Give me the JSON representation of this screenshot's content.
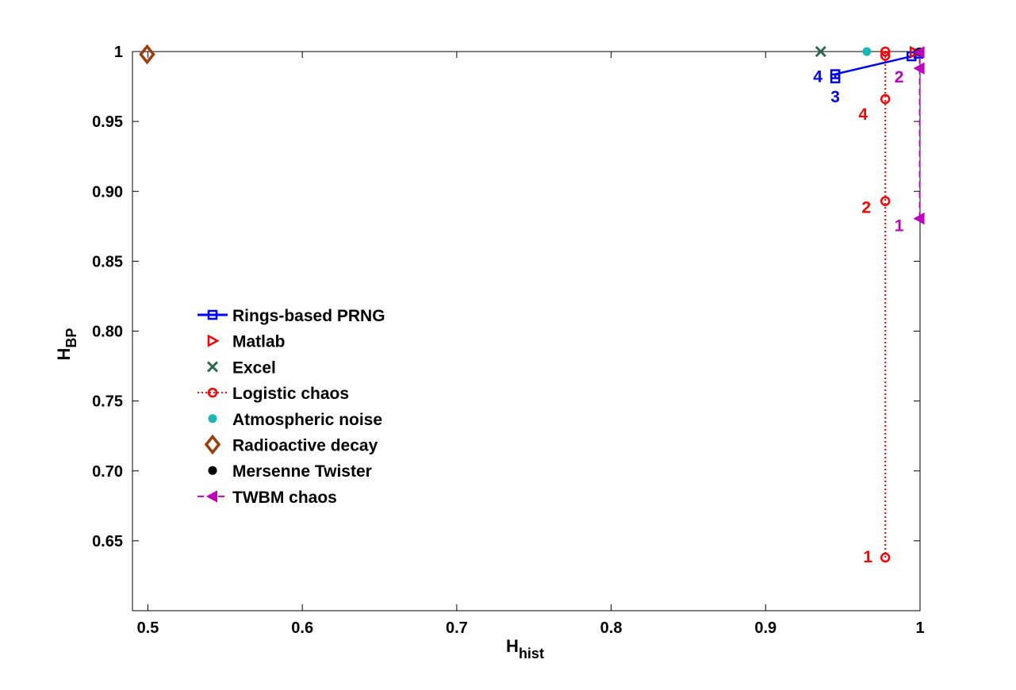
{
  "chart_data": {
    "type": "scatter",
    "xlabel": "H",
    "xlabel_sub": "hist",
    "ylabel": "H",
    "ylabel_sub": "BP",
    "xlim": [
      0.49,
      1.0
    ],
    "ylim": [
      0.6,
      1.0
    ],
    "x_ticks": [
      0.5,
      0.6,
      0.7,
      0.8,
      0.9,
      1.0
    ],
    "x_tick_labels": [
      "0.5",
      "0.6",
      "0.7",
      "0.8",
      "0.9",
      "1"
    ],
    "y_ticks": [
      0.65,
      0.7,
      0.75,
      0.8,
      0.85,
      0.9,
      0.95,
      1.0
    ],
    "y_tick_labels": [
      "0.65",
      "0.70",
      "0.75",
      "0.80",
      "0.85",
      "0.90",
      "0.95",
      "1"
    ],
    "grid": false,
    "legend_position": "center-left",
    "series": [
      {
        "name": "Rings-based PRNG",
        "color": "#0000ff",
        "marker": "square",
        "line": "solid",
        "points": [
          {
            "x": 0.9451,
            "y": 0.9808,
            "label": "3"
          },
          {
            "x": 0.9451,
            "y": 0.9838,
            "label": "4"
          },
          {
            "x": 0.9945,
            "y": 0.9966,
            "label": ""
          },
          {
            "x": 0.999,
            "y": 0.9985,
            "label": ""
          }
        ]
      },
      {
        "name": "Matlab",
        "color": "#ff0000",
        "marker": "triangle-right",
        "line": "none",
        "points": [
          {
            "x": 0.9965,
            "y": 0.9995,
            "label": ""
          }
        ]
      },
      {
        "name": "Excel",
        "color": "#2e6b4f",
        "marker": "x",
        "line": "none",
        "points": [
          {
            "x": 0.9357,
            "y": 1.0,
            "label": ""
          }
        ]
      },
      {
        "name": "Logistic chaos",
        "color": "#ff0000",
        "marker": "circle",
        "line": "dotted",
        "points": [
          {
            "x": 0.9775,
            "y": 0.638,
            "label": "1"
          },
          {
            "x": 0.9775,
            "y": 0.893,
            "label": "2"
          },
          {
            "x": 0.9775,
            "y": 0.966,
            "label": "4"
          },
          {
            "x": 0.9775,
            "y": 0.997,
            "label": ""
          },
          {
            "x": 0.9775,
            "y": 1.0,
            "label": ""
          }
        ]
      },
      {
        "name": "Atmospheric noise",
        "color": "#18b8b8",
        "marker": "dot",
        "line": "none",
        "points": [
          {
            "x": 0.9655,
            "y": 1.0,
            "label": ""
          }
        ]
      },
      {
        "name": "Radioactive decay",
        "color": "#a03c0a",
        "marker": "diamond",
        "line": "none",
        "points": [
          {
            "x": 0.4995,
            "y": 0.998,
            "label": ""
          }
        ]
      },
      {
        "name": "Mersenne Twister",
        "color": "#000000",
        "marker": "dot",
        "line": "none",
        "points": [
          {
            "x": 0.9995,
            "y": 0.9998,
            "label": ""
          }
        ]
      },
      {
        "name": "TWBM chaos",
        "color": "#bf00bf",
        "marker": "triangle-left",
        "line": "dashed",
        "points": [
          {
            "x": 0.9998,
            "y": 0.8805,
            "label": "1"
          },
          {
            "x": 0.9998,
            "y": 0.988,
            "label": "2"
          },
          {
            "x": 0.9998,
            "y": 0.9995,
            "label": ""
          }
        ]
      }
    ]
  }
}
